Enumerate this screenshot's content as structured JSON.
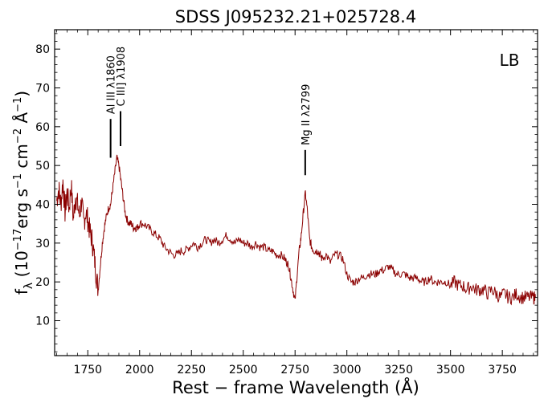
{
  "chart_data": {
    "type": "line",
    "title": "SDSS J095232.21+025728.4",
    "xlabel": "Rest − frame Wavelength (Å)",
    "ylabel": "fλ (10⁻¹⁷erg s⁻¹ cm⁻² Å⁻¹)",
    "xlim": [
      1590,
      3920
    ],
    "ylim": [
      1,
      85
    ],
    "xticks": [
      1750,
      2000,
      2250,
      2500,
      2750,
      3000,
      3250,
      3500,
      3750
    ],
    "yticks": [
      10,
      20,
      30,
      40,
      50,
      60,
      70,
      80
    ],
    "grid": false,
    "line_color": "#8b0000",
    "label_box": "LB",
    "annotations": [
      {
        "text": "Al III λ1860",
        "x": 1860,
        "y0": 52,
        "y1": 62
      },
      {
        "text": "C III] λ1908",
        "x": 1908,
        "y0": 55,
        "y1": 64
      },
      {
        "text": "Mg II λ2799",
        "x": 2799,
        "y0": 47.5,
        "y1": 54
      }
    ],
    "series": [
      {
        "x": [
          1600,
          1610,
          1620,
          1630,
          1640,
          1650,
          1660,
          1670,
          1680,
          1690,
          1700,
          1710,
          1720,
          1730,
          1740,
          1750,
          1760,
          1770,
          1780,
          1790,
          1800,
          1810,
          1820,
          1830,
          1840,
          1850,
          1860,
          1870,
          1880,
          1890,
          1900,
          1910,
          1920,
          1930,
          1940,
          1950,
          1960,
          1970,
          1980,
          1990,
          2000,
          2020,
          2040,
          2060,
          2080,
          2100,
          2120,
          2140,
          2160,
          2180,
          2200,
          2220,
          2240,
          2260,
          2280,
          2300,
          2320,
          2340,
          2360,
          2380,
          2400,
          2420,
          2440,
          2460,
          2480,
          2500,
          2520,
          2540,
          2560,
          2580,
          2600,
          2620,
          2640,
          2660,
          2680,
          2700,
          2710,
          2720,
          2730,
          2740,
          2750,
          2760,
          2770,
          2780,
          2790,
          2800,
          2810,
          2820,
          2830,
          2840,
          2850,
          2860,
          2870,
          2880,
          2900,
          2920,
          2940,
          2960,
          2980,
          3000,
          3020,
          3040,
          3060,
          3080,
          3100,
          3120,
          3140,
          3160,
          3180,
          3200,
          3220,
          3240,
          3260,
          3280,
          3300,
          3320,
          3340,
          3360,
          3380,
          3400,
          3420,
          3440,
          3460,
          3480,
          3500,
          3520,
          3540,
          3560,
          3580,
          3600,
          3620,
          3640,
          3660,
          3680,
          3700,
          3720,
          3740,
          3760,
          3780,
          3800,
          3820,
          3840,
          3860,
          3880,
          3900,
          3910
        ],
        "y": [
          41,
          44,
          40,
          46,
          38,
          43,
          39,
          45,
          36,
          42,
          40,
          37,
          41,
          35,
          38,
          36,
          33,
          31,
          27,
          22,
          18,
          24,
          30,
          34,
          37,
          39,
          40,
          44,
          48,
          52,
          50,
          46,
          42,
          38,
          36,
          35,
          35,
          34,
          34,
          34,
          35,
          35,
          34,
          33,
          32,
          31,
          29,
          28,
          27,
          27,
          28,
          28,
          29,
          30,
          29,
          30,
          31,
          30,
          31,
          30,
          31,
          32,
          31,
          30,
          31,
          30,
          30,
          29,
          30,
          29,
          29,
          28,
          28,
          27,
          27,
          26,
          25,
          24,
          21,
          18,
          15,
          22,
          28,
          32,
          38,
          43,
          38,
          31,
          29,
          28,
          28,
          28,
          27,
          26,
          27,
          25,
          27,
          27,
          26,
          22,
          20,
          20,
          21,
          21,
          22,
          22,
          22,
          23,
          23,
          24,
          23,
          22,
          22,
          22,
          21,
          21,
          21,
          20,
          20,
          21,
          20,
          20,
          20,
          20,
          19,
          20,
          19,
          19,
          18,
          19,
          18,
          18,
          18,
          17,
          18,
          17,
          16,
          17,
          16,
          16,
          17,
          16,
          16,
          16,
          16,
          16
        ]
      }
    ]
  }
}
